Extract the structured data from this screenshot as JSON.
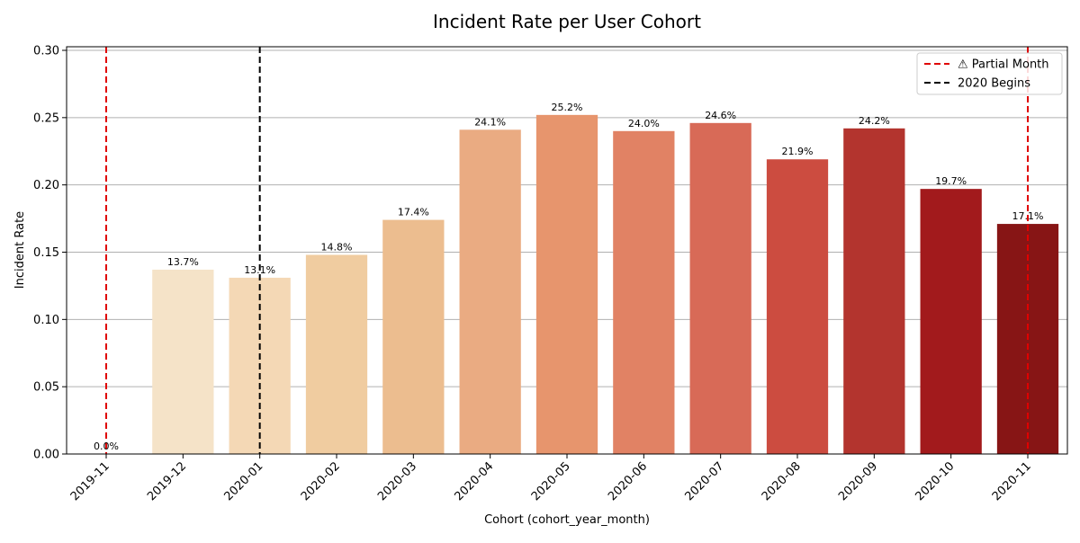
{
  "chart_data": {
    "type": "bar",
    "title": "Incident Rate per User Cohort",
    "xlabel": "Cohort (cohort_year_month)",
    "ylabel": "Incident Rate",
    "ylim": [
      0,
      0.3
    ],
    "yticks": [
      0.0,
      0.05,
      0.1,
      0.15,
      0.2,
      0.25,
      0.3
    ],
    "ytick_labels": [
      "0.00",
      "0.05",
      "0.10",
      "0.15",
      "0.20",
      "0.25",
      "0.30"
    ],
    "grid": "y",
    "categories": [
      "2019-11",
      "2019-12",
      "2020-01",
      "2020-02",
      "2020-03",
      "2020-04",
      "2020-05",
      "2020-06",
      "2020-07",
      "2020-08",
      "2020-09",
      "2020-10",
      "2020-11"
    ],
    "values": [
      0.0,
      0.137,
      0.131,
      0.148,
      0.174,
      0.241,
      0.252,
      0.24,
      0.246,
      0.219,
      0.242,
      0.197,
      0.171
    ],
    "data_labels": [
      "0.0%",
      "13.7%",
      "13.1%",
      "14.8%",
      "17.4%",
      "24.1%",
      "25.2%",
      "24.0%",
      "24.6%",
      "21.9%",
      "24.2%",
      "19.7%",
      "17.1%"
    ],
    "colors": [
      "#fae5c8",
      "#f5e3c8",
      "#f4d8b5",
      "#f0cca0",
      "#ecbd8f",
      "#eaab82",
      "#e7956d",
      "#e18264",
      "#d86a57",
      "#cc4c40",
      "#b3342e",
      "#a21a1c",
      "#871515"
    ],
    "vlines": [
      {
        "category": "2019-11",
        "color": "#e00000",
        "style": "dashed",
        "legend": "⚠ Partial Month"
      },
      {
        "category": "2020-11",
        "color": "#e00000",
        "style": "dashed",
        "legend": "⚠ Partial Month"
      },
      {
        "category": "2020-01",
        "color": "#000000",
        "style": "dashed",
        "legend": "2020 Begins"
      }
    ],
    "legend": {
      "placement": "top-right",
      "entries": [
        {
          "label": "⚠ Partial Month",
          "color": "#e00000"
        },
        {
          "label": "2020 Begins",
          "color": "#000000"
        }
      ]
    }
  }
}
